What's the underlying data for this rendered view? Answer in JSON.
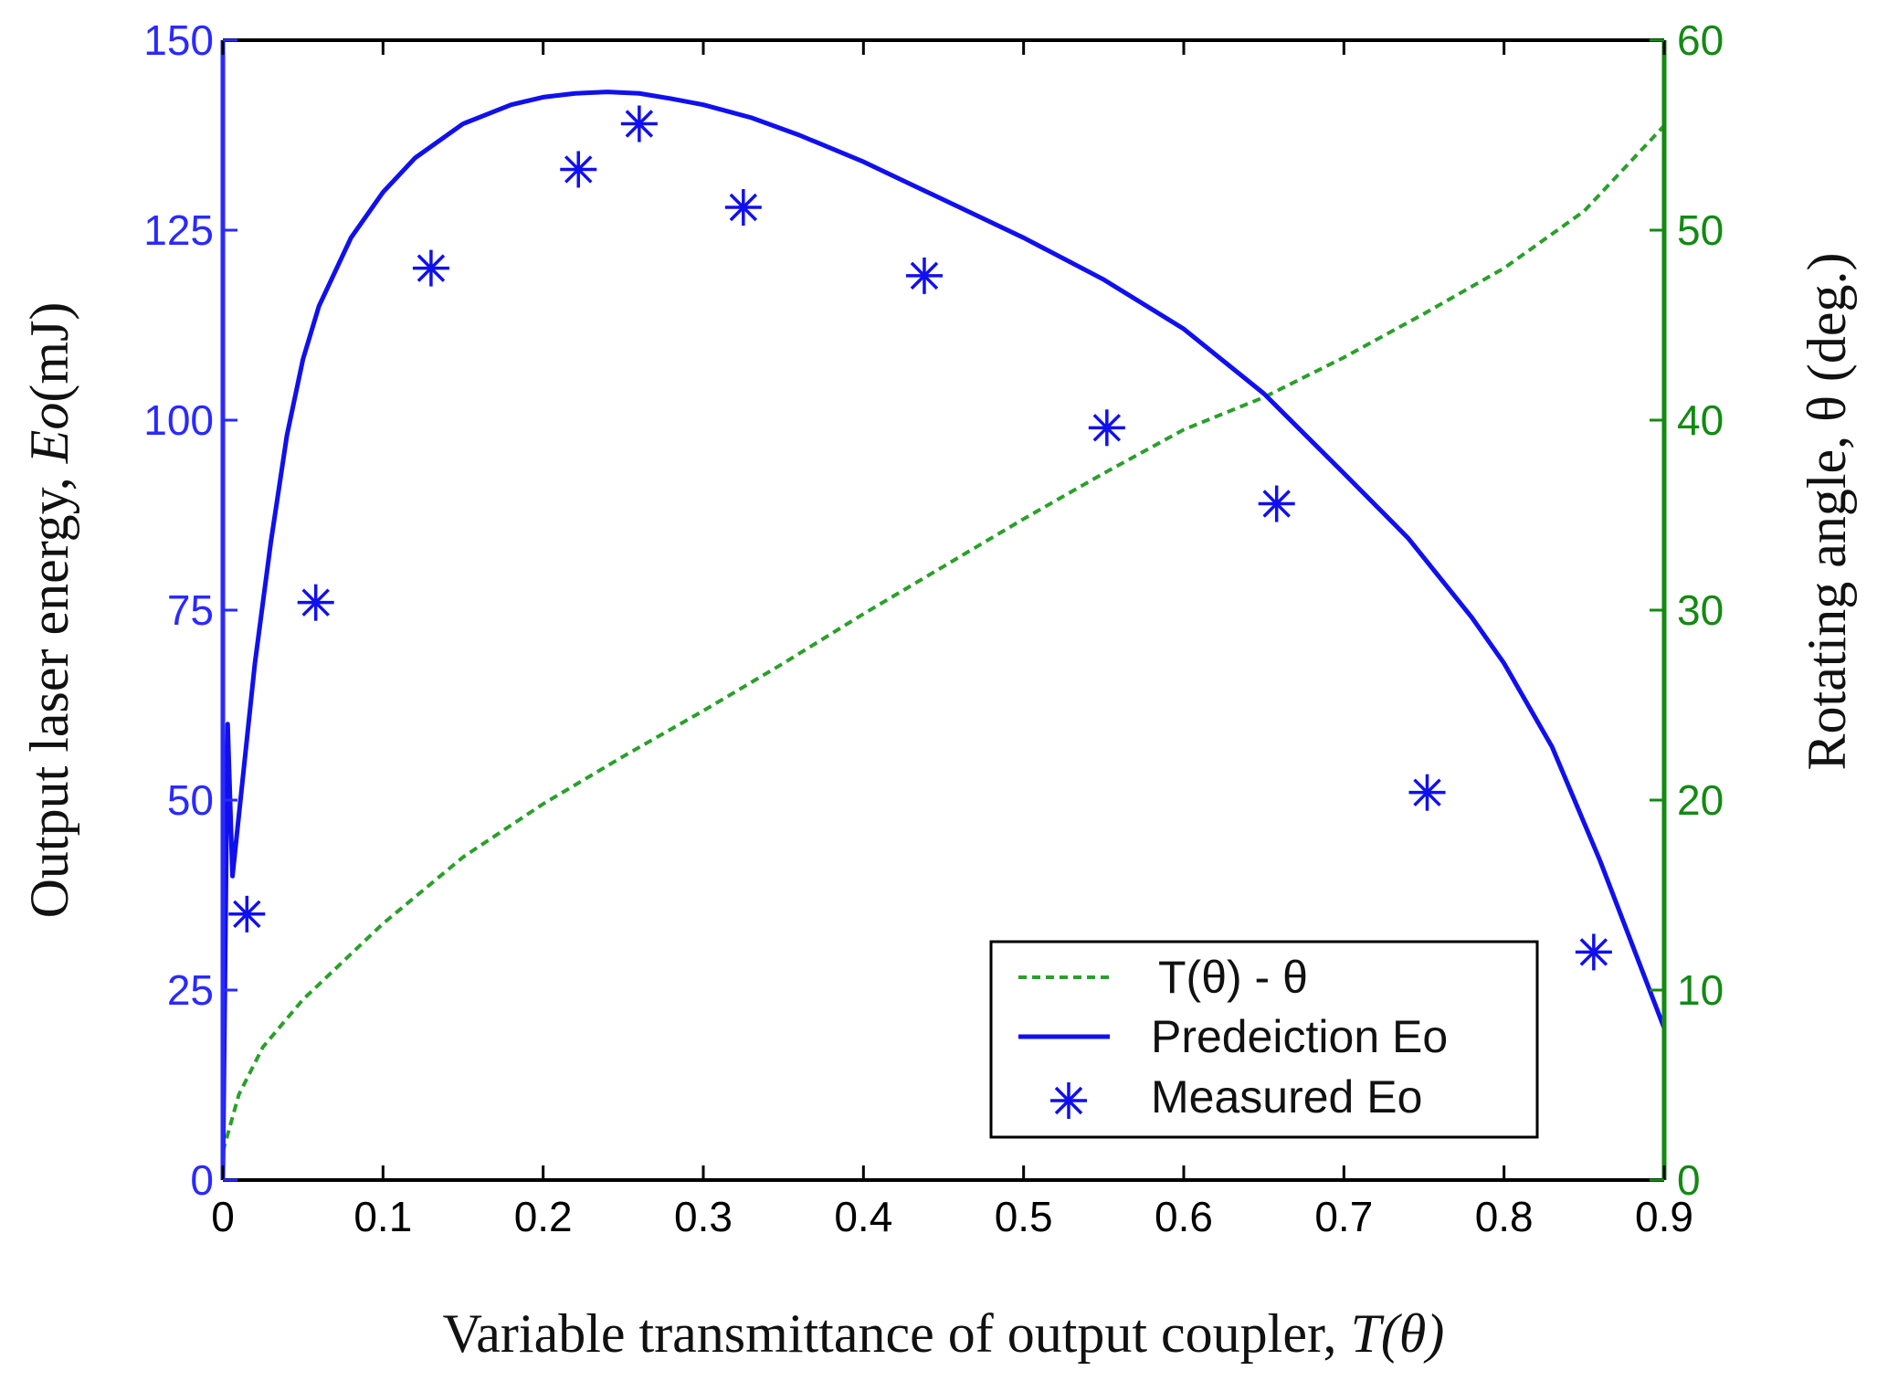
{
  "chart_data": {
    "type": "line",
    "title": "",
    "xlabel": "Variable transmittance of output coupler, ",
    "xlabel_italic": "T(θ)",
    "ylabel_left": "Output laser energy, ",
    "ylabel_left_italic": "Eo",
    "ylabel_left_unit": "(mJ)",
    "ylabel_right": "Rotating angle, θ (deg.)",
    "xlim": [
      0,
      0.9
    ],
    "ylim_left": [
      0,
      150
    ],
    "ylim_right": [
      0,
      60
    ],
    "x_ticks": [
      "0",
      "0.1",
      "0.2",
      "0.3",
      "0.4",
      "0.5",
      "0.6",
      "0.7",
      "0.8",
      "0.9"
    ],
    "y_left_ticks": [
      "0",
      "25",
      "50",
      "75",
      "100",
      "125",
      "150"
    ],
    "y_right_ticks": [
      "0",
      "10",
      "20",
      "30",
      "40",
      "50",
      "60"
    ],
    "colors": {
      "left_axis": "#2a2aff",
      "right_axis": "#138a13",
      "prediction": "#1010ee",
      "measured": "#1010ee",
      "theta": "#2aa02a"
    },
    "series": [
      {
        "name": "T(θ) -  θ",
        "axis": "right",
        "style": "dashed",
        "x": [
          0,
          0.01,
          0.025,
          0.05,
          0.1,
          0.15,
          0.2,
          0.25,
          0.3,
          0.35,
          0.4,
          0.45,
          0.5,
          0.55,
          0.6,
          0.65,
          0.7,
          0.75,
          0.8,
          0.85,
          0.9
        ],
        "values": [
          1.5,
          4.5,
          7,
          9.5,
          13.5,
          17,
          19.8,
          22.3,
          24.7,
          27.2,
          29.8,
          32.3,
          34.8,
          37.2,
          39.5,
          41.2,
          43.3,
          45.6,
          48,
          51,
          55.5
        ]
      },
      {
        "name": "Predeiction Eo",
        "axis": "left",
        "style": "solid",
        "x": [
          0,
          0.003,
          0.006,
          0.01,
          0.015,
          0.02,
          0.025,
          0.03,
          0.04,
          0.05,
          0.06,
          0.08,
          0.1,
          0.12,
          0.15,
          0.18,
          0.2,
          0.22,
          0.24,
          0.26,
          0.28,
          0.3,
          0.33,
          0.36,
          0.4,
          0.43,
          0.46,
          0.5,
          0.55,
          0.6,
          0.65,
          0.7,
          0.74,
          0.78,
          0.8,
          0.83,
          0.86,
          0.88,
          0.9
        ],
        "values": [
          0,
          60,
          40,
          48,
          58,
          68,
          76,
          84,
          98,
          108,
          115,
          124,
          130,
          134.5,
          139,
          141.5,
          142.5,
          143,
          143.2,
          143,
          142.3,
          141.5,
          139.8,
          137.5,
          134,
          131,
          128,
          124,
          118.5,
          112,
          103.5,
          93,
          84.5,
          74,
          68,
          57,
          42,
          31,
          20
        ]
      },
      {
        "name": "Measured Eo",
        "axis": "left",
        "style": "markers",
        "x": [
          0.015,
          0.058,
          0.13,
          0.222,
          0.26,
          0.325,
          0.438,
          0.552,
          0.658,
          0.752,
          0.856
        ],
        "values": [
          35,
          76,
          120,
          133,
          139,
          128,
          119,
          99,
          89,
          51,
          30
        ]
      }
    ],
    "legend": {
      "position": "bottom-right",
      "entries": [
        "T(θ) -  θ",
        "Predeiction Eo",
        "Measured Eo"
      ]
    }
  }
}
